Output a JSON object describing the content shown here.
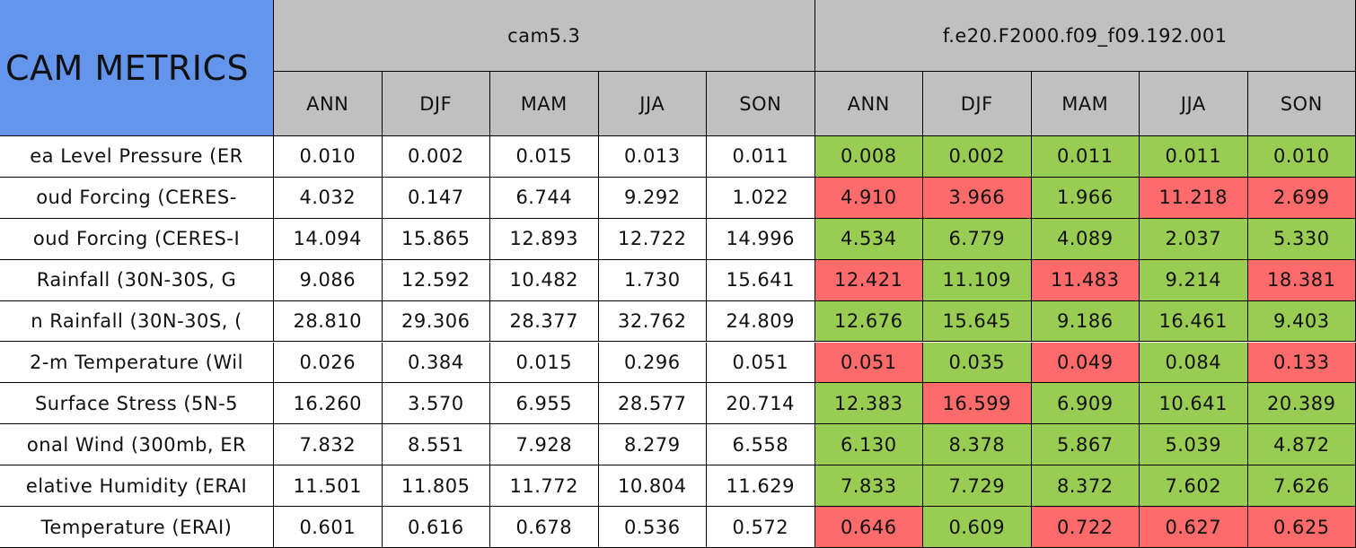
{
  "header": {
    "title": "CAM METRICS",
    "groups": [
      "cam5.3",
      "f.e20.F2000.f09_f09.192.001"
    ],
    "seasons": [
      "ANN",
      "DJF",
      "MAM",
      "JJA",
      "SON",
      "ANN",
      "DJF",
      "MAM",
      "JJA",
      "SON"
    ]
  },
  "table": {
    "rows": [
      {
        "label": "ea Level Pressure (ER",
        "values": [
          "0.010",
          "0.002",
          "0.015",
          "0.013",
          "0.011",
          "0.008",
          "0.002",
          "0.011",
          "0.011",
          "0.010"
        ],
        "colors": [
          "#99cc52",
          "#99cc52",
          "#99cc52",
          "#99cc52",
          "#99cc52"
        ]
      },
      {
        "label": "oud Forcing (CERES-",
        "values": [
          "4.032",
          "0.147",
          "6.744",
          "9.292",
          "1.022",
          "4.910",
          "3.966",
          "1.966",
          "11.218",
          "2.699"
        ],
        "colors": [
          "#ff6b6b",
          "#ff6b6b",
          "#99cc52",
          "#ff6b6b",
          "#ff6b6b"
        ]
      },
      {
        "label": "oud Forcing (CERES-I",
        "values": [
          "14.094",
          "15.865",
          "12.893",
          "12.722",
          "14.996",
          "4.534",
          "6.779",
          "4.089",
          "2.037",
          "5.330"
        ],
        "colors": [
          "#99cc52",
          "#99cc52",
          "#99cc52",
          "#99cc52",
          "#99cc52"
        ]
      },
      {
        "label": " Rainfall (30N-30S, G",
        "values": [
          "9.086",
          "12.592",
          "10.482",
          "1.730",
          "15.641",
          "12.421",
          "11.109",
          "11.483",
          "9.214",
          "18.381"
        ],
        "colors": [
          "#ff6b6b",
          "#99cc52",
          "#ff6b6b",
          "#99cc52",
          "#ff6b6b"
        ]
      },
      {
        "label": "n Rainfall (30N-30S, (",
        "values": [
          "28.810",
          "29.306",
          "28.377",
          "32.762",
          "24.809",
          "12.676",
          "15.645",
          "9.186",
          "16.461",
          "9.403"
        ],
        "colors": [
          "#99cc52",
          "#99cc52",
          "#99cc52",
          "#99cc52",
          "#99cc52"
        ]
      },
      {
        "label": "2-m Temperature (Wil",
        "values": [
          "0.026",
          "0.384",
          "0.015",
          "0.296",
          "0.051",
          "0.051",
          "0.035",
          "0.049",
          "0.084",
          "0.133"
        ],
        "colors": [
          "#ff6b6b",
          "#99cc52",
          "#ff6b6b",
          "#99cc52",
          "#ff6b6b"
        ]
      },
      {
        "label": " Surface Stress (5N-5",
        "values": [
          "16.260",
          "3.570",
          "6.955",
          "28.577",
          "20.714",
          "12.383",
          "16.599",
          "6.909",
          "10.641",
          "20.389"
        ],
        "colors": [
          "#99cc52",
          "#ff6b6b",
          "#99cc52",
          "#99cc52",
          "#99cc52"
        ]
      },
      {
        "label": "onal Wind (300mb, ER",
        "values": [
          "7.832",
          "8.551",
          "7.928",
          "8.279",
          "6.558",
          "6.130",
          "8.378",
          "5.867",
          "5.039",
          "4.872"
        ],
        "colors": [
          "#99cc52",
          "#99cc52",
          "#99cc52",
          "#99cc52",
          "#99cc52"
        ]
      },
      {
        "label": "elative Humidity (ERAI",
        "values": [
          "11.501",
          "11.805",
          "11.772",
          "10.804",
          "11.629",
          "7.833",
          "7.729",
          "8.372",
          "7.602",
          "7.626"
        ],
        "colors": [
          "#99cc52",
          "#99cc52",
          "#99cc52",
          "#99cc52",
          "#99cc52"
        ]
      },
      {
        "label": "Temperature (ERAI)",
        "values": [
          "0.601",
          "0.616",
          "0.678",
          "0.536",
          "0.572",
          "0.646",
          "0.609",
          "0.722",
          "0.627",
          "0.625"
        ],
        "colors": [
          "#ff6b6b",
          "#99cc52",
          "#ff6b6b",
          "#ff6b6b",
          "#ff6b6b"
        ]
      }
    ]
  }
}
